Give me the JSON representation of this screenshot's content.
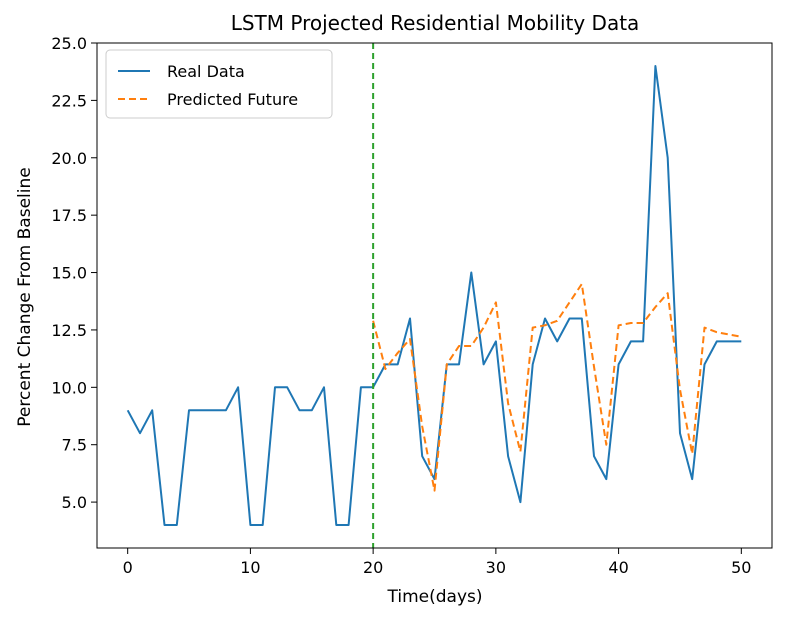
{
  "chart_data": {
    "type": "line",
    "title": "LSTM Projected Residential Mobility Data",
    "xlabel": "Time(days)",
    "ylabel": "Percent Change From Baseline",
    "xlim": [
      -2.5,
      52.5
    ],
    "ylim": [
      3.0,
      25.0
    ],
    "xticks": [
      0,
      10,
      20,
      30,
      40,
      50
    ],
    "xtick_labels": [
      "0",
      "10",
      "20",
      "30",
      "40",
      "50"
    ],
    "yticks": [
      5.0,
      7.5,
      10.0,
      12.5,
      15.0,
      17.5,
      20.0,
      22.5,
      25.0
    ],
    "ytick_labels": [
      "5.0",
      "7.5",
      "10.0",
      "12.5",
      "15.0",
      "17.5",
      "20.0",
      "22.5",
      "25.0"
    ],
    "grid": false,
    "legend_position": "top-left",
    "vline": {
      "x": 20,
      "color": "#2ca02c",
      "style": "dashed"
    },
    "series": [
      {
        "name": "Real Data",
        "color": "#1f77b4",
        "style": "solid",
        "x": [
          0,
          1,
          2,
          3,
          4,
          5,
          6,
          7,
          8,
          9,
          10,
          11,
          12,
          13,
          14,
          15,
          16,
          17,
          18,
          19,
          20,
          21,
          22,
          23,
          24,
          25,
          26,
          27,
          28,
          29,
          30,
          31,
          32,
          33,
          34,
          35,
          36,
          37,
          38,
          39,
          40,
          41,
          42,
          43,
          44,
          45,
          46,
          47,
          48,
          49,
          50
        ],
        "values": [
          9,
          8,
          9,
          4,
          4,
          9,
          9,
          9,
          9,
          10,
          4,
          4,
          10,
          10,
          9,
          9,
          10,
          4,
          4,
          10,
          10,
          11,
          11,
          13,
          7,
          6,
          11,
          11,
          15,
          11,
          12,
          7,
          5,
          11,
          13,
          12,
          13,
          13,
          7,
          6,
          11,
          12,
          12,
          24,
          20,
          8,
          6,
          11,
          12,
          12,
          12
        ]
      },
      {
        "name": "Predicted Future",
        "color": "#ff7f0e",
        "style": "dashed",
        "x": [
          20,
          21,
          22,
          23,
          24,
          25,
          26,
          27,
          28,
          29,
          30,
          31,
          32,
          33,
          34,
          35,
          36,
          37,
          38,
          39,
          40,
          41,
          42,
          43,
          44,
          45,
          46,
          47,
          48,
          49,
          50
        ],
        "values": [
          12.9,
          10.8,
          11.5,
          12.1,
          8.3,
          5.5,
          11.0,
          11.8,
          11.8,
          12.6,
          13.7,
          9.3,
          7.2,
          12.6,
          12.7,
          12.9,
          13.7,
          14.5,
          10.9,
          7.5,
          12.7,
          12.8,
          12.8,
          13.5,
          14.1,
          9.9,
          7.1,
          12.6,
          12.4,
          12.3,
          12.2
        ]
      }
    ]
  }
}
